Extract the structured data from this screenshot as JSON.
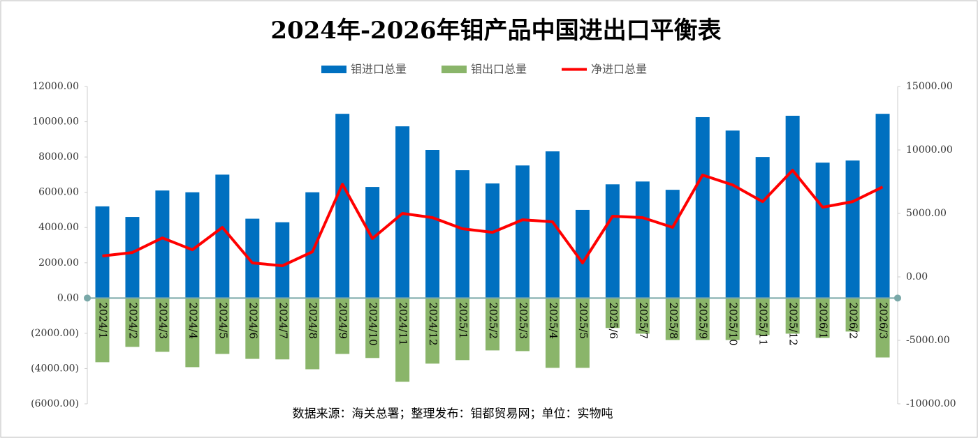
{
  "chart_data": {
    "type": "bar",
    "title": "2024年-2026年钼产品中国进出口平衡表",
    "source": "数据来源：海关总署；整理发布：钼都贸易网；单位：实物吨",
    "categories": [
      "2024/1",
      "2024/2",
      "2024/3",
      "2024/4",
      "2024/5",
      "2024/6",
      "2024/7",
      "2024/8",
      "2024/9",
      "2024/10",
      "2024/11",
      "2024/12",
      "2025/1",
      "2025/2",
      "2025/3",
      "2025/4",
      "2025/5",
      "2025/6",
      "2025/7",
      "2025/8",
      "2025/9",
      "2025/10",
      "2025/11",
      "2025/12",
      "2026/1",
      "2026/2",
      "2026/3"
    ],
    "series": [
      {
        "name": "钼进口总量",
        "type": "bar",
        "color": "#0070c0",
        "values": [
          5200,
          4600,
          6100,
          6000,
          7000,
          4500,
          4300,
          6000,
          10450,
          6300,
          9740,
          8400,
          7250,
          6500,
          7520,
          8320,
          5000,
          6450,
          6610,
          6140,
          10260,
          9500,
          8000,
          10340,
          7680,
          7800,
          10450
        ]
      },
      {
        "name": "钼出口总量",
        "type": "bar",
        "color": "#8ab56a",
        "values": [
          -3640,
          -2770,
          -3050,
          -3920,
          -3170,
          -3450,
          -3480,
          -4040,
          -3170,
          -3400,
          -4750,
          -3720,
          -3520,
          -2970,
          -3010,
          -3960,
          -3960,
          -1700,
          -2020,
          -2380,
          -2380,
          -2380,
          -2100,
          -2020,
          -2260,
          -1900,
          -3370
        ]
      },
      {
        "name": "净进口总量",
        "type": "line",
        "axis": "y2",
        "color": "#ff0000",
        "values": [
          1650,
          1920,
          3070,
          2140,
          3900,
          1100,
          880,
          1980,
          7300,
          3020,
          5000,
          4670,
          3790,
          3510,
          4500,
          4340,
          1100,
          4780,
          4670,
          3900,
          8020,
          7250,
          5930,
          8400,
          5490,
          5930,
          7080
        ]
      }
    ],
    "ylim": [
      -6000,
      12000
    ],
    "yticks": [
      {
        "value": 12000,
        "label": "12000.00"
      },
      {
        "value": 10000,
        "label": "10000.00"
      },
      {
        "value": 8000,
        "label": "8000.00"
      },
      {
        "value": 6000,
        "label": "6000.00"
      },
      {
        "value": 4000,
        "label": "4000.00"
      },
      {
        "value": 2000,
        "label": "2000.00"
      },
      {
        "value": 0,
        "label": "0.00"
      },
      {
        "value": -2000,
        "label": "(2000.00)"
      },
      {
        "value": -4000,
        "label": "(4000.00)"
      },
      {
        "value": -6000,
        "label": "(6000.00)"
      }
    ],
    "y2lim": [
      -10000,
      15000
    ],
    "y2ticks": [
      {
        "value": 15000,
        "label": "15000.00"
      },
      {
        "value": 10000,
        "label": "10000.00"
      },
      {
        "value": 5000,
        "label": "5000.00"
      },
      {
        "value": 0,
        "label": "0.00"
      },
      {
        "value": -5000,
        "label": "-5000.00"
      },
      {
        "value": -10000,
        "label": "-10000.00"
      }
    ],
    "legend": "top"
  }
}
